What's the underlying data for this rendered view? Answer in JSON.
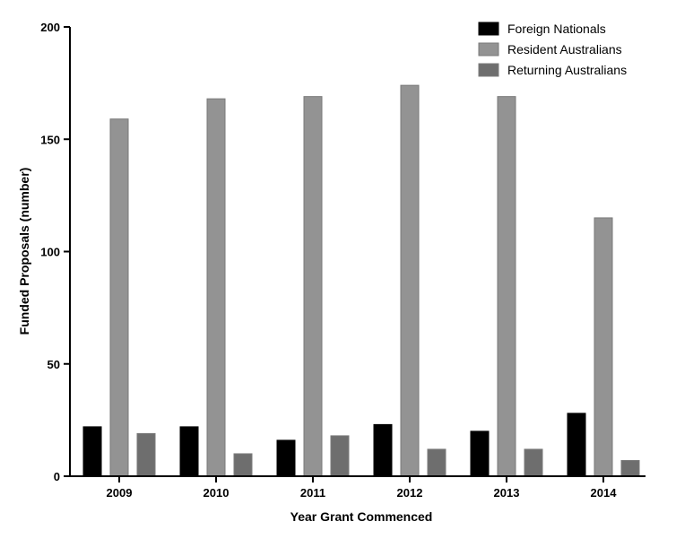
{
  "chart_data": {
    "type": "bar",
    "xlabel": "Year Grant Commenced",
    "ylabel": "Funded Proposals (number)",
    "ylim": [
      0,
      200
    ],
    "yticks": [
      0,
      50,
      100,
      150,
      200
    ],
    "categories": [
      "2009",
      "2010",
      "2011",
      "2012",
      "2013",
      "2014"
    ],
    "series": [
      {
        "name": "Foreign Nationals",
        "color": "#000000",
        "values": [
          22,
          22,
          16,
          23,
          20,
          28
        ]
      },
      {
        "name": "Resident Australians",
        "color": "#939393",
        "values": [
          159,
          168,
          169,
          174,
          169,
          115
        ]
      },
      {
        "name": "Returning Australians",
        "color": "#6e6e6e",
        "values": [
          19,
          10,
          18,
          12,
          12,
          7
        ]
      }
    ],
    "legend_position": "top-right",
    "grid": false
  }
}
